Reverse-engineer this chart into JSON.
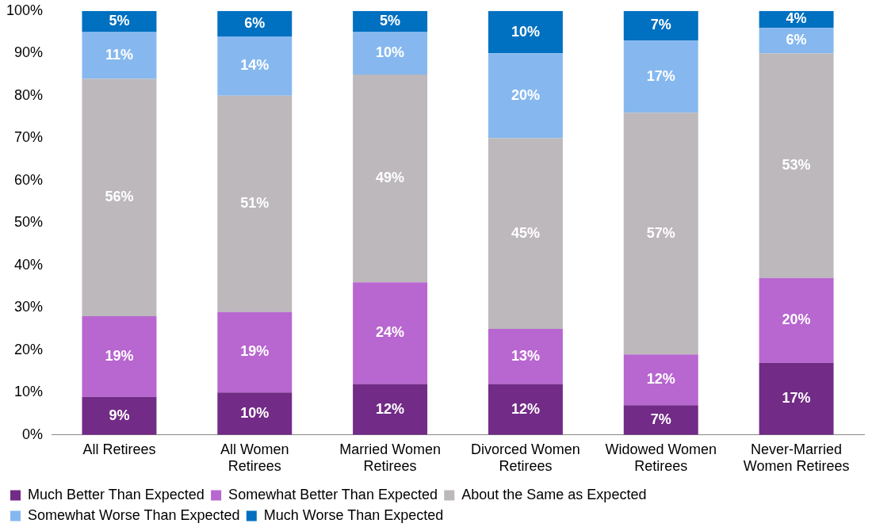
{
  "chart_data": {
    "type": "bar",
    "stacked": true,
    "categories": [
      "All Retirees",
      "All Women Retirees",
      "Married Women Retirees",
      "Divorced Women Retirees",
      "Widowed Women Retirees",
      "Never-Married Women Retirees"
    ],
    "series": [
      {
        "name": "Much Better Than Expected",
        "color": "#722b87",
        "values": [
          9,
          10,
          12,
          12,
          7,
          17
        ],
        "value_labels": [
          "9%",
          "10%",
          "12%",
          "12%",
          "7%",
          "17%"
        ]
      },
      {
        "name": "Somewhat Better Than Expected",
        "color": "#b866d0",
        "values": [
          19,
          19,
          24,
          13,
          12,
          20
        ],
        "value_labels": [
          "19%",
          "19%",
          "24%",
          "13%",
          "12%",
          "20%"
        ]
      },
      {
        "name": "About the Same as Expected",
        "color": "#bcb8bc",
        "values": [
          56,
          51,
          49,
          45,
          57,
          53
        ],
        "value_labels": [
          "56%",
          "51%",
          "49%",
          "45%",
          "57%",
          "53%"
        ]
      },
      {
        "name": "Somewhat Worse Than Expected",
        "color": "#86b8ef",
        "values": [
          11,
          14,
          10,
          20,
          17,
          6
        ],
        "value_labels": [
          "11%",
          "14%",
          "10%",
          "20%",
          "17%",
          "6%"
        ]
      },
      {
        "name": "Much Worse Than Expected",
        "color": "#0070c0",
        "values": [
          5,
          6,
          5,
          10,
          7,
          4
        ],
        "value_labels": [
          "5%",
          "6%",
          "5%",
          "10%",
          "7%",
          "4%"
        ]
      }
    ],
    "ylim": [
      0,
      100
    ],
    "yticks": [
      {
        "value": 0,
        "label": "0%"
      },
      {
        "value": 10,
        "label": "10%"
      },
      {
        "value": 20,
        "label": "20%"
      },
      {
        "value": 30,
        "label": "30%"
      },
      {
        "value": 40,
        "label": "40%"
      },
      {
        "value": 50,
        "label": "50%"
      },
      {
        "value": 60,
        "label": "60%"
      },
      {
        "value": 70,
        "label": "70%"
      },
      {
        "value": 80,
        "label": "80%"
      },
      {
        "value": 90,
        "label": "90%"
      },
      {
        "value": 100,
        "label": "100%"
      }
    ],
    "grid": false,
    "legend": "bottom"
  }
}
